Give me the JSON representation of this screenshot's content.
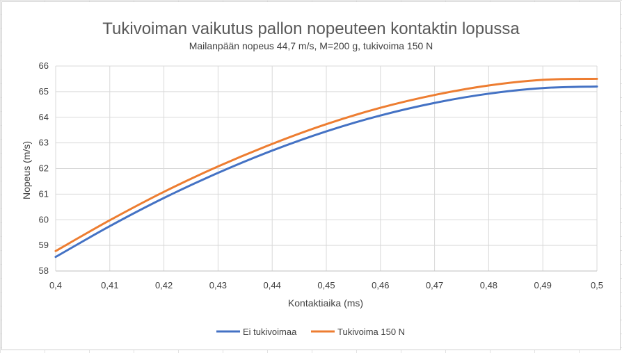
{
  "chart_data": {
    "type": "line",
    "title": "Tukivoiman vaikutus pallon nopeuteen kontaktin lopussa",
    "subtitle": "Mailanpään nopeus 44,7 m/s, M=200 g, tukivoima 150 N",
    "xlabel": "Kontaktiaika (ms)",
    "ylabel": "Nopeus (m/s)",
    "xlim": [
      0.4,
      0.5
    ],
    "ylim": [
      58,
      66
    ],
    "x_ticks": [
      "0,4",
      "0,41",
      "0,42",
      "0,43",
      "0,44",
      "0,45",
      "0,46",
      "0,47",
      "0,48",
      "0,49",
      "0,5"
    ],
    "y_ticks": [
      "58",
      "59",
      "60",
      "61",
      "62",
      "63",
      "64",
      "65",
      "66"
    ],
    "grid": true,
    "legend_position": "bottom",
    "x": [
      0.4,
      0.41,
      0.42,
      0.43,
      0.44,
      0.45,
      0.46,
      0.47,
      0.48,
      0.49,
      0.5
    ],
    "series": [
      {
        "name": "Ei tukivoimaa",
        "color": "#4472C4",
        "values": [
          58.55,
          59.75,
          60.85,
          61.83,
          62.7,
          63.45,
          64.07,
          64.56,
          64.92,
          65.14,
          65.2
        ]
      },
      {
        "name": "Tukivoima 150 N",
        "color": "#ED7D31",
        "values": [
          58.78,
          59.98,
          61.09,
          62.08,
          62.96,
          63.73,
          64.37,
          64.87,
          65.24,
          65.46,
          65.5
        ]
      }
    ]
  }
}
